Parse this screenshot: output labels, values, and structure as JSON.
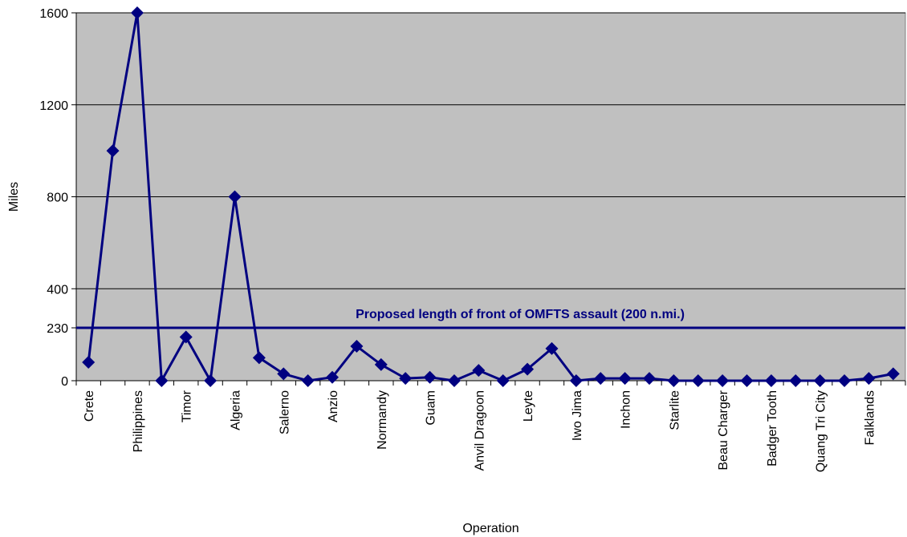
{
  "chart_data": {
    "type": "line",
    "xlabel": "Operation",
    "ylabel": "Miles",
    "ylim": [
      0,
      1600
    ],
    "y_ticks": [
      0,
      230,
      400,
      800,
      1200,
      1600
    ],
    "grid": "horizontal",
    "plot_background": "#c0c0c0",
    "series_color": "#000080",
    "categories": [
      "Crete",
      "",
      "Philippines",
      "",
      "Timor",
      "",
      "Algeria",
      "",
      "Salerno",
      "",
      "Anzio",
      "",
      "Normandy",
      "",
      "Guam",
      "",
      "Anvil Dragoon",
      "",
      "Leyte",
      "",
      "Iwo Jima",
      "",
      "Inchon",
      "",
      "Starlite",
      "",
      "Beau Charger",
      "",
      "Badger Tooth",
      "",
      "Quang Tri City",
      "",
      "Falklands",
      ""
    ],
    "series": [
      {
        "values": [
          80,
          1000,
          1600,
          0,
          190,
          0,
          800,
          100,
          30,
          0,
          15,
          150,
          70,
          10,
          15,
          0,
          45,
          0,
          50,
          140,
          0,
          10,
          10,
          10,
          0,
          0,
          0,
          0,
          0,
          0,
          0,
          0,
          10,
          30
        ]
      }
    ],
    "reference_line": {
      "value": 230,
      "label": "Proposed length of front of OMFTS assault (200 n.mi.)"
    }
  }
}
